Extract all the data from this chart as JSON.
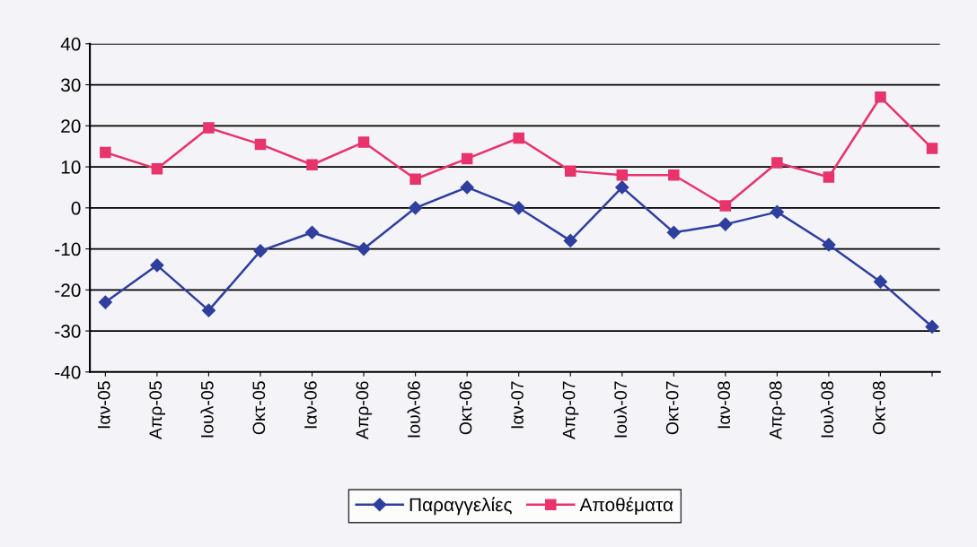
{
  "chart_data": {
    "type": "line",
    "categories": [
      "Ιαν-05",
      "Απρ-05",
      "Ιουλ-05",
      "Οκτ-05",
      "Ιαν-06",
      "Απρ-06",
      "Ιουλ-06",
      "Οκτ-06",
      "Ιαν-07",
      "Απρ-07",
      "Ιουλ-07",
      "Οκτ-07",
      "Ιαν-08",
      "Απρ-08",
      "Ιουλ-08",
      "Οκτ-08",
      null
    ],
    "series": [
      {
        "name": "Παραγγελίες",
        "color": "#2e3f9e",
        "marker": "diamond",
        "values": [
          -23,
          -14,
          -25,
          -10.5,
          -6,
          -10,
          0,
          5,
          0,
          -8,
          5,
          -6,
          -4,
          -1,
          -9,
          -18,
          -29
        ]
      },
      {
        "name": "Αποθέματα",
        "color": "#e8336b",
        "marker": "square",
        "values": [
          13.5,
          9.5,
          19.5,
          15.5,
          10.5,
          16,
          7,
          12,
          17,
          9,
          8,
          8,
          0.5,
          11,
          7.5,
          27,
          14.5
        ]
      }
    ],
    "ylim": [
      -40,
      40
    ],
    "yticks": [
      -40,
      -30,
      -20,
      -10,
      0,
      10,
      20,
      30,
      40
    ],
    "grid": "y",
    "legend": "bottom",
    "line_style": "solid"
  }
}
